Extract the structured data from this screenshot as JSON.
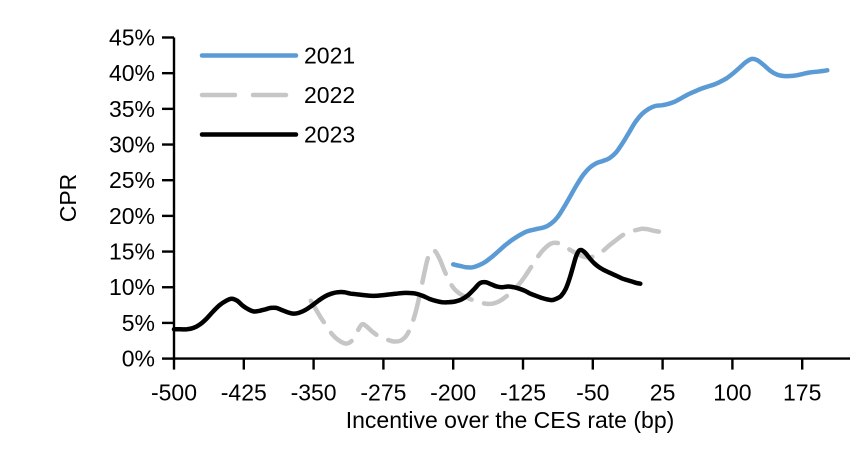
{
  "chart_data": {
    "type": "line",
    "title": "",
    "xlabel": "Incentive over the CES rate (bp)",
    "ylabel": "CPR",
    "x_ticks": [
      -500,
      -425,
      -350,
      -275,
      -200,
      -125,
      -50,
      25,
      100,
      175
    ],
    "y_ticks_pct": [
      0,
      5,
      10,
      15,
      20,
      25,
      30,
      35,
      40,
      45
    ],
    "y_tick_suffix": "%",
    "xlim": [
      -500,
      226
    ],
    "ylim": [
      0,
      45
    ],
    "grid": false,
    "legend_position": "top-left-inside",
    "axis_color": "#000000",
    "background_color": "#ffffff",
    "series": [
      {
        "name": "2021",
        "color": "#5B9BD5",
        "dash": false,
        "points": [
          [
            -200,
            13.2
          ],
          [
            -193,
            13.0
          ],
          [
            -186,
            12.8
          ],
          [
            -179,
            12.8
          ],
          [
            -172,
            13.1
          ],
          [
            -165,
            13.6
          ],
          [
            -158,
            14.3
          ],
          [
            -151,
            15.1
          ],
          [
            -144,
            15.9
          ],
          [
            -137,
            16.6
          ],
          [
            -130,
            17.2
          ],
          [
            -123,
            17.7
          ],
          [
            -116,
            18.0
          ],
          [
            -109,
            18.2
          ],
          [
            -102,
            18.4
          ],
          [
            -95,
            18.9
          ],
          [
            -88,
            19.8
          ],
          [
            -81,
            21.2
          ],
          [
            -74,
            22.8
          ],
          [
            -67,
            24.4
          ],
          [
            -60,
            25.8
          ],
          [
            -53,
            26.8
          ],
          [
            -46,
            27.4
          ],
          [
            -39,
            27.7
          ],
          [
            -32,
            28.1
          ],
          [
            -25,
            28.9
          ],
          [
            -18,
            30.2
          ],
          [
            -11,
            31.7
          ],
          [
            -4,
            33.2
          ],
          [
            3,
            34.3
          ],
          [
            10,
            35.0
          ],
          [
            17,
            35.4
          ],
          [
            24,
            35.5
          ],
          [
            31,
            35.7
          ],
          [
            38,
            36.0
          ],
          [
            45,
            36.5
          ],
          [
            52,
            37.0
          ],
          [
            59,
            37.4
          ],
          [
            66,
            37.8
          ],
          [
            73,
            38.1
          ],
          [
            80,
            38.4
          ],
          [
            87,
            38.8
          ],
          [
            94,
            39.3
          ],
          [
            101,
            40.0
          ],
          [
            108,
            40.8
          ],
          [
            115,
            41.6
          ],
          [
            121,
            42.0
          ],
          [
            127,
            41.8
          ],
          [
            134,
            41.1
          ],
          [
            141,
            40.3
          ],
          [
            148,
            39.8
          ],
          [
            155,
            39.6
          ],
          [
            162,
            39.6
          ],
          [
            169,
            39.7
          ],
          [
            176,
            39.9
          ],
          [
            183,
            40.1
          ],
          [
            190,
            40.2
          ],
          [
            197,
            40.3
          ],
          [
            202,
            40.4
          ]
        ]
      },
      {
        "name": "2022",
        "color": "#C6C6C6",
        "dash": true,
        "points": [
          [
            -353,
            8.1
          ],
          [
            -348,
            7.0
          ],
          [
            -343,
            5.9
          ],
          [
            -338,
            4.9
          ],
          [
            -333,
            3.9
          ],
          [
            -327,
            3.0
          ],
          [
            -321,
            2.4
          ],
          [
            -315,
            2.1
          ],
          [
            -309,
            2.5
          ],
          [
            -303,
            3.8
          ],
          [
            -298,
            4.8
          ],
          [
            -293,
            4.5
          ],
          [
            -288,
            3.9
          ],
          [
            -282,
            3.3
          ],
          [
            -276,
            2.9
          ],
          [
            -270,
            2.6
          ],
          [
            -264,
            2.4
          ],
          [
            -257,
            2.5
          ],
          [
            -251,
            3.1
          ],
          [
            -246,
            4.3
          ],
          [
            -241,
            6.2
          ],
          [
            -236,
            8.9
          ],
          [
            -231,
            12.0
          ],
          [
            -227,
            14.2
          ],
          [
            -223,
            15.2
          ],
          [
            -219,
            15.0
          ],
          [
            -214,
            13.8
          ],
          [
            -209,
            12.2
          ],
          [
            -204,
            10.8
          ],
          [
            -199,
            9.8
          ],
          [
            -193,
            9.1
          ],
          [
            -186,
            8.6
          ],
          [
            -179,
            8.2
          ],
          [
            -172,
            7.9
          ],
          [
            -165,
            7.7
          ],
          [
            -158,
            7.7
          ],
          [
            -151,
            8.0
          ],
          [
            -144,
            8.6
          ],
          [
            -137,
            9.4
          ],
          [
            -130,
            10.3
          ],
          [
            -123,
            11.5
          ],
          [
            -116,
            12.9
          ],
          [
            -109,
            14.3
          ],
          [
            -102,
            15.4
          ],
          [
            -95,
            16.1
          ],
          [
            -88,
            16.2
          ],
          [
            -81,
            15.8
          ],
          [
            -74,
            15.2
          ],
          [
            -67,
            14.7
          ],
          [
            -60,
            14.3
          ],
          [
            -53,
            14.2
          ],
          [
            -46,
            14.5
          ],
          [
            -39,
            15.1
          ],
          [
            -32,
            15.9
          ],
          [
            -25,
            16.6
          ],
          [
            -18,
            17.3
          ],
          [
            -11,
            17.8
          ],
          [
            -4,
            18.0
          ],
          [
            3,
            18.2
          ],
          [
            10,
            18.1
          ],
          [
            16,
            17.9
          ],
          [
            21,
            17.8
          ]
        ]
      },
      {
        "name": "2023",
        "color": "#000000",
        "dash": false,
        "points": [
          [
            -500,
            4.1
          ],
          [
            -493,
            4.1
          ],
          [
            -486,
            4.1
          ],
          [
            -479,
            4.3
          ],
          [
            -472,
            4.8
          ],
          [
            -465,
            5.6
          ],
          [
            -458,
            6.6
          ],
          [
            -451,
            7.5
          ],
          [
            -444,
            8.1
          ],
          [
            -438,
            8.4
          ],
          [
            -432,
            8.1
          ],
          [
            -426,
            7.4
          ],
          [
            -420,
            6.9
          ],
          [
            -414,
            6.6
          ],
          [
            -408,
            6.7
          ],
          [
            -402,
            6.9
          ],
          [
            -396,
            7.1
          ],
          [
            -390,
            7.1
          ],
          [
            -384,
            6.8
          ],
          [
            -378,
            6.5
          ],
          [
            -372,
            6.3
          ],
          [
            -366,
            6.4
          ],
          [
            -359,
            6.8
          ],
          [
            -352,
            7.4
          ],
          [
            -345,
            8.1
          ],
          [
            -338,
            8.7
          ],
          [
            -331,
            9.1
          ],
          [
            -324,
            9.3
          ],
          [
            -317,
            9.3
          ],
          [
            -310,
            9.1
          ],
          [
            -303,
            9.0
          ],
          [
            -296,
            8.9
          ],
          [
            -289,
            8.8
          ],
          [
            -282,
            8.8
          ],
          [
            -275,
            8.9
          ],
          [
            -268,
            9.0
          ],
          [
            -261,
            9.1
          ],
          [
            -254,
            9.2
          ],
          [
            -247,
            9.2
          ],
          [
            -240,
            9.1
          ],
          [
            -233,
            8.8
          ],
          [
            -226,
            8.4
          ],
          [
            -219,
            8.1
          ],
          [
            -212,
            7.9
          ],
          [
            -205,
            7.9
          ],
          [
            -198,
            8.0
          ],
          [
            -191,
            8.3
          ],
          [
            -184,
            8.9
          ],
          [
            -177,
            9.8
          ],
          [
            -171,
            10.6
          ],
          [
            -165,
            10.7
          ],
          [
            -159,
            10.4
          ],
          [
            -153,
            10.1
          ],
          [
            -147,
            10.0
          ],
          [
            -141,
            10.1
          ],
          [
            -135,
            10.0
          ],
          [
            -129,
            9.8
          ],
          [
            -123,
            9.5
          ],
          [
            -117,
            9.1
          ],
          [
            -111,
            8.8
          ],
          [
            -105,
            8.5
          ],
          [
            -99,
            8.3
          ],
          [
            -94,
            8.2
          ],
          [
            -89,
            8.4
          ],
          [
            -84,
            8.8
          ],
          [
            -79,
            9.8
          ],
          [
            -75,
            11.2
          ],
          [
            -71,
            13.0
          ],
          [
            -68,
            14.3
          ],
          [
            -65,
            15.1
          ],
          [
            -62,
            15.2
          ],
          [
            -58,
            14.8
          ],
          [
            -53,
            14.0
          ],
          [
            -48,
            13.3
          ],
          [
            -43,
            12.8
          ],
          [
            -38,
            12.4
          ],
          [
            -33,
            12.1
          ],
          [
            -28,
            11.8
          ],
          [
            -23,
            11.5
          ],
          [
            -18,
            11.2
          ],
          [
            -13,
            11.0
          ],
          [
            -8,
            10.8
          ],
          [
            -3,
            10.6
          ],
          [
            1,
            10.5
          ]
        ]
      }
    ]
  }
}
